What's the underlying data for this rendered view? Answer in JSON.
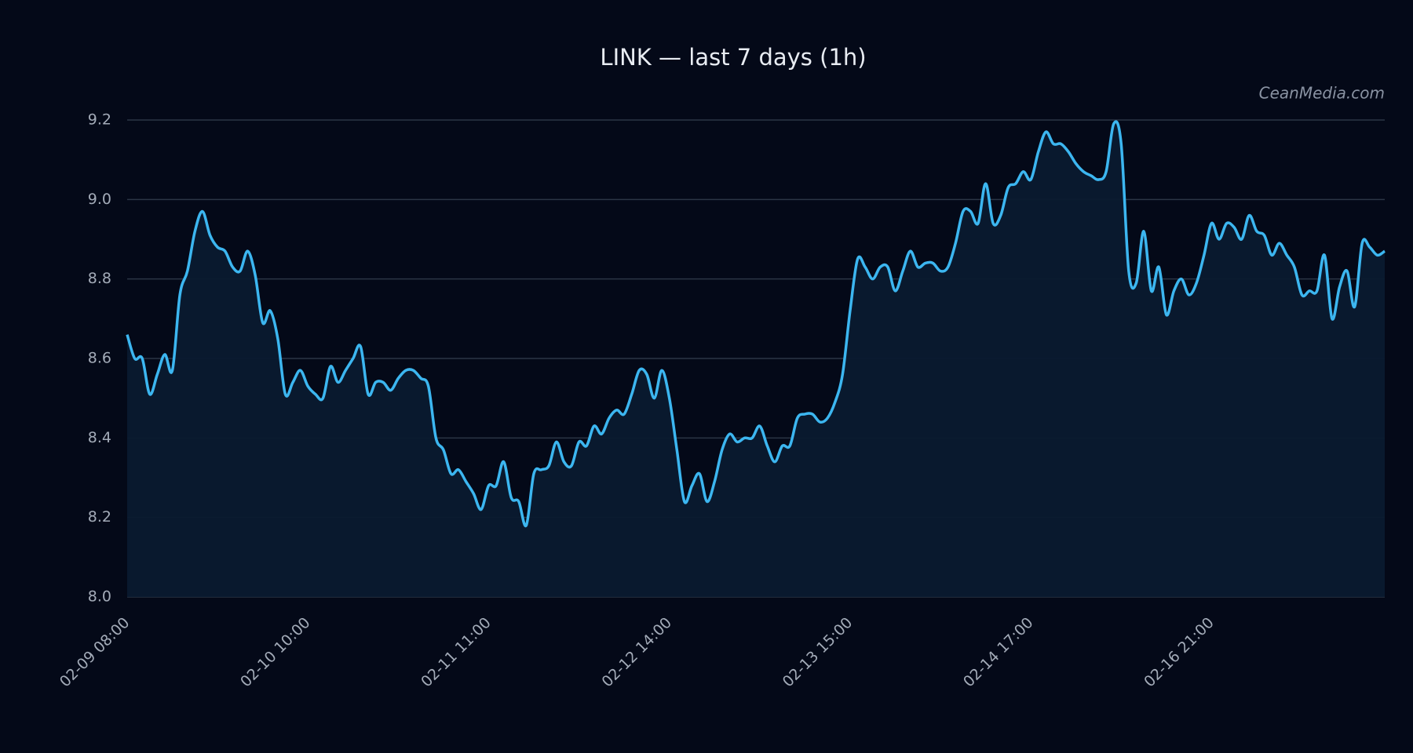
{
  "chart_data": {
    "type": "line",
    "title": "LINK — last 7 days (1h)",
    "watermark": "CeanMedia.com",
    "categories": [
      "02-09 08:00",
      null,
      null,
      null,
      null,
      null,
      null,
      null,
      null,
      null,
      null,
      null,
      null,
      null,
      null,
      null,
      null,
      null,
      null,
      null,
      null,
      null,
      null,
      null,
      "02-10 10:00",
      null,
      null,
      null,
      null,
      null,
      null,
      null,
      null,
      null,
      null,
      null,
      null,
      null,
      null,
      null,
      null,
      null,
      null,
      null,
      null,
      null,
      null,
      null,
      "02-11 11:00",
      null,
      null,
      null,
      null,
      null,
      null,
      null,
      null,
      null,
      null,
      null,
      null,
      null,
      null,
      null,
      null,
      null,
      null,
      null,
      null,
      null,
      null,
      null,
      "02-12 14:00",
      null,
      null,
      null,
      null,
      null,
      null,
      null,
      null,
      null,
      null,
      null,
      null,
      null,
      null,
      null,
      null,
      null,
      null,
      null,
      null,
      null,
      null,
      null,
      "02-13 15:00",
      null,
      null,
      null,
      null,
      null,
      null,
      null,
      null,
      null,
      null,
      null,
      null,
      null,
      null,
      null,
      null,
      null,
      null,
      null,
      null,
      null,
      null,
      null,
      "02-14 17:00",
      null,
      null,
      null,
      null,
      null,
      null,
      null,
      null,
      null,
      null,
      null,
      null,
      null,
      null,
      null,
      null,
      null,
      null,
      null,
      null,
      null,
      null,
      null,
      "02-16 21:00",
      null,
      null,
      null,
      null,
      null,
      null,
      null,
      null,
      null,
      null,
      null,
      null,
      null,
      null,
      null,
      null,
      null,
      null,
      null,
      null,
      null,
      null,
      null
    ],
    "series": [
      {
        "color": "#3cb6f0",
        "values": [
          8.66,
          8.6,
          8.6,
          8.51,
          8.56,
          8.61,
          8.57,
          8.76,
          8.82,
          8.92,
          8.97,
          8.91,
          8.88,
          8.87,
          8.83,
          8.82,
          8.87,
          8.81,
          8.69,
          8.72,
          8.65,
          8.51,
          8.54,
          8.57,
          8.53,
          8.51,
          8.5,
          8.58,
          8.54,
          8.57,
          8.6,
          8.63,
          8.51,
          8.54,
          8.54,
          8.52,
          8.55,
          8.57,
          8.57,
          8.55,
          8.53,
          8.4,
          8.37,
          8.31,
          8.32,
          8.29,
          8.26,
          8.22,
          8.28,
          8.28,
          8.34,
          8.25,
          8.24,
          8.18,
          8.31,
          8.32,
          8.33,
          8.39,
          8.34,
          8.33,
          8.39,
          8.38,
          8.43,
          8.41,
          8.45,
          8.47,
          8.46,
          8.51,
          8.57,
          8.56,
          8.5,
          8.57,
          8.5,
          8.37,
          8.24,
          8.28,
          8.31,
          8.24,
          8.29,
          8.37,
          8.41,
          8.39,
          8.4,
          8.4,
          8.43,
          8.38,
          8.34,
          8.38,
          8.38,
          8.45,
          8.46,
          8.46,
          8.44,
          8.45,
          8.49,
          8.56,
          8.72,
          8.85,
          8.83,
          8.8,
          8.83,
          8.83,
          8.77,
          8.82,
          8.87,
          8.83,
          8.84,
          8.84,
          8.82,
          8.83,
          8.89,
          8.97,
          8.97,
          8.94,
          9.04,
          8.94,
          8.96,
          9.03,
          9.04,
          9.07,
          9.05,
          9.12,
          9.17,
          9.14,
          9.14,
          9.12,
          9.09,
          9.07,
          9.06,
          9.05,
          9.07,
          9.19,
          9.14,
          8.82,
          8.79,
          8.92,
          8.77,
          8.83,
          8.71,
          8.77,
          8.8,
          8.76,
          8.79,
          8.86,
          8.94,
          8.9,
          8.94,
          8.93,
          8.9,
          8.96,
          8.92,
          8.91,
          8.86,
          8.89,
          8.86,
          8.83,
          8.76,
          8.77,
          8.77,
          8.86,
          8.7,
          8.78,
          8.82,
          8.73,
          8.89,
          8.88,
          8.86,
          8.87
        ]
      }
    ],
    "ylim": [
      8.0,
      9.2
    ],
    "yticks": [
      {
        "value": 8,
        "label": "8.0"
      },
      8.2,
      8.4,
      8.6,
      8.8,
      {
        "value": 9,
        "label": "9.0"
      },
      9.2
    ],
    "grid": true
  }
}
